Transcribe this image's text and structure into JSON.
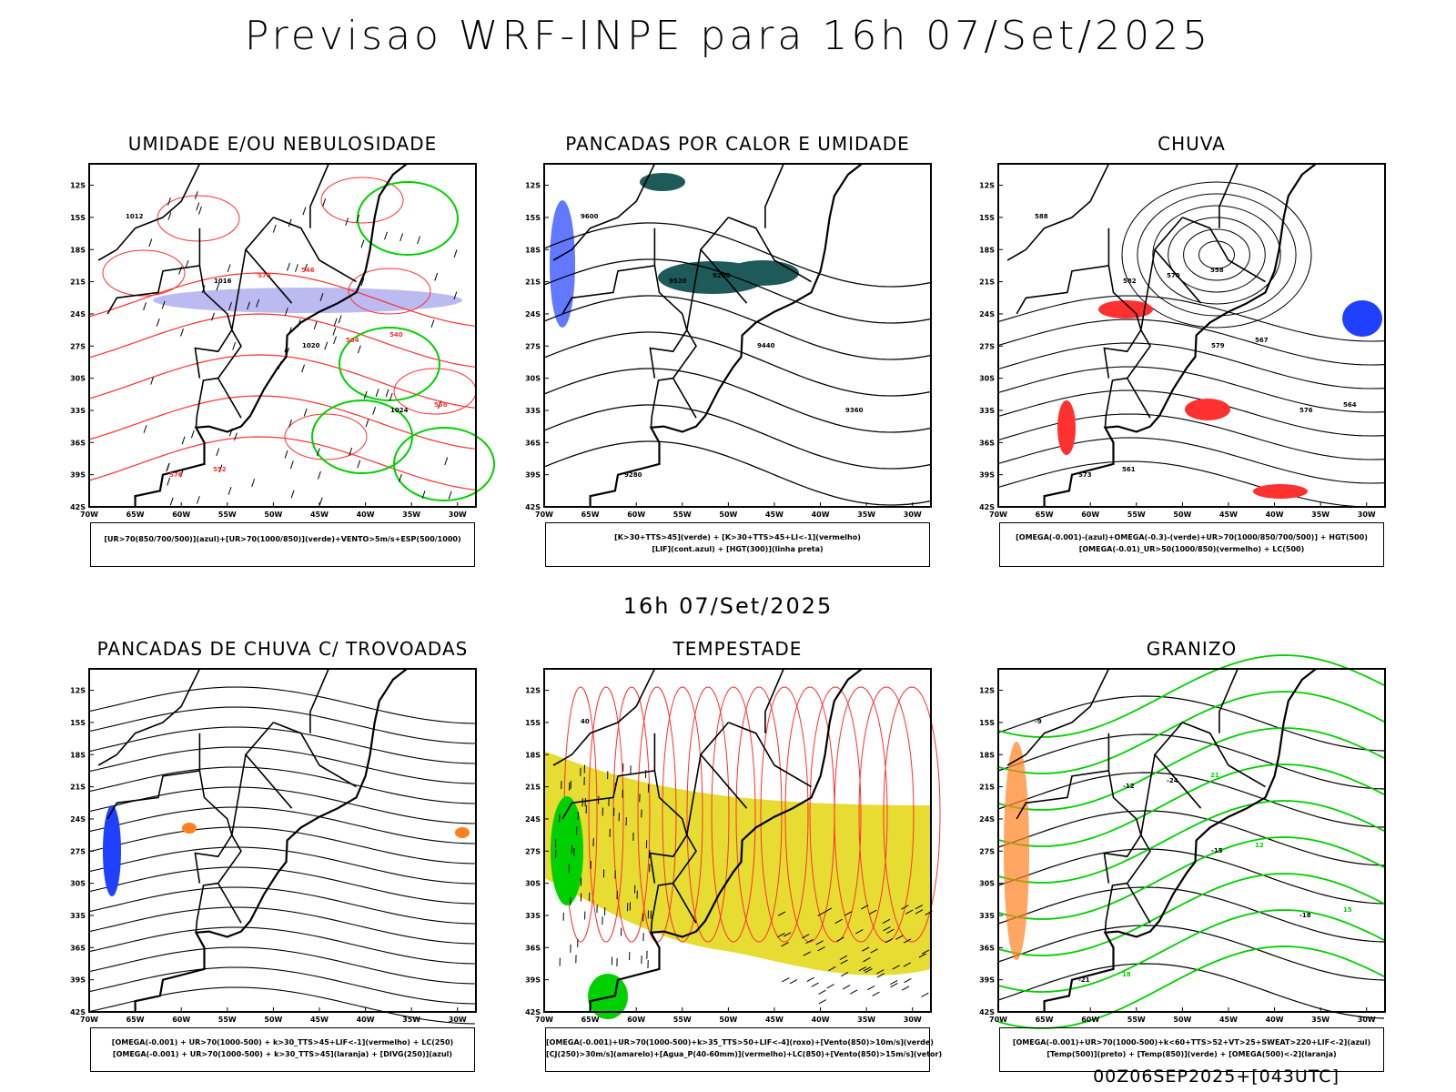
{
  "title": "Previsao WRF-INPE  para 16h 07/Set/2025",
  "mid_title": "16h 07/Set/2025",
  "footer": "00Z06SEP2025+[043UTC]",
  "colors": {
    "blue": "#2040ff",
    "green": "#00d000",
    "red": "#ff3030",
    "orange": "#ff8020",
    "yellow": "#e6dc32",
    "teal": "#1e5a5a",
    "lavender": "#b4b4f0"
  },
  "chart_data": [
    {
      "type": "map",
      "title": "UMIDADE E/OU NEBULOSIDADE",
      "legend": [
        "[UR>70(850/700/500)](azul)+[UR>70(1000/850)](verde)+VENTO>5m/s+ESP(500/1000)"
      ],
      "labels": [
        "1012",
        "1016",
        "1020",
        "1024",
        "576",
        "570",
        "564",
        "558",
        "552",
        "546",
        "540"
      ],
      "lat_ticks": [
        "12S",
        "15S",
        "18S",
        "21S",
        "24S",
        "27S",
        "30S",
        "33S",
        "36S",
        "39S",
        "42S"
      ],
      "lon_ticks": [
        "70W",
        "65W",
        "60W",
        "55W",
        "50W",
        "45W",
        "40W",
        "35W",
        "30W"
      ]
    },
    {
      "type": "map",
      "title": "PANCADAS POR CALOR E UMIDADE",
      "legend": [
        "[K>30+TTS>45](verde) + [K>30+TTS>45+LI<-1](vermelho)",
        "[LIF](cont.azul) + [HGT(300)](linha preta)"
      ],
      "labels": [
        "9600",
        "9520",
        "9440",
        "9360",
        "9280",
        "9200"
      ],
      "lat_ticks": [
        "12S",
        "15S",
        "18S",
        "21S",
        "24S",
        "27S",
        "30S",
        "33S",
        "36S",
        "39S",
        "42S"
      ],
      "lon_ticks": [
        "70W",
        "65W",
        "60W",
        "55W",
        "50W",
        "45W",
        "40W",
        "35W",
        "30W"
      ]
    },
    {
      "type": "map",
      "title": "CHUVA",
      "legend": [
        "[OMEGA(-0.001)-(azul)+OMEGA(-0.3)-(verde)+UR>70(1000/850/700/500)] + HGT(500)",
        "[OMEGA(-0.01)_UR>50(1000/850)(vermelho) + LC(500)"
      ],
      "labels": [
        "588",
        "582",
        "579",
        "576",
        "573",
        "570",
        "567",
        "564",
        "561",
        "558"
      ],
      "lat_ticks": [
        "12S",
        "15S",
        "18S",
        "21S",
        "24S",
        "27S",
        "30S",
        "33S",
        "36S",
        "39S",
        "42S"
      ],
      "lon_ticks": [
        "70W",
        "65W",
        "60W",
        "55W",
        "50W",
        "45W",
        "40W",
        "35W",
        "30W"
      ]
    },
    {
      "type": "map",
      "title": "PANCADAS DE CHUVA C/ TROVOADAS",
      "legend": [
        "[OMEGA(-0.001) + UR>70(1000-500) + k>30_TTS>45+LIF<-1](vermelho) + LC(250)",
        "[OMEGA(-0.001) + UR>70(1000-500) + k>30_TTS>45](laranja) + [DIVG(250)](azul)"
      ],
      "labels": [],
      "lat_ticks": [
        "12S",
        "15S",
        "18S",
        "21S",
        "24S",
        "27S",
        "30S",
        "33S",
        "36S",
        "39S",
        "42S"
      ],
      "lon_ticks": [
        "70W",
        "65W",
        "60W",
        "55W",
        "50W",
        "45W",
        "40W",
        "35W",
        "30W"
      ]
    },
    {
      "type": "map",
      "title": "TEMPESTADE",
      "legend": [
        "[OMEGA(-0.001)+UR>70(1000-500)+k>35_TTS>50+LIF<-4](roxo)+[Vento(850)>10m/s](verde)",
        "[CJ(250)>30m/s](amarelo)+[Agua_P(40-60mm)](vermelho)+LC(850)+[Vento(850)>15m/s](vetor)"
      ],
      "labels": [
        "40"
      ],
      "lat_ticks": [
        "12S",
        "15S",
        "18S",
        "21S",
        "24S",
        "27S",
        "30S",
        "33S",
        "36S",
        "39S",
        "42S"
      ],
      "lon_ticks": [
        "70W",
        "65W",
        "60W",
        "55W",
        "50W",
        "45W",
        "40W",
        "35W",
        "30W"
      ]
    },
    {
      "type": "map",
      "title": "GRANIZO",
      "legend": [
        "[OMEGA(-0.001)+UR>70(1000-500)+k<60+TTS>52+VT>25+SWEAT>220+LIF<-2](azul)",
        "[Temp(500)](preto) + [Temp(850)](verde) + [OMEGA(500)<-2](laranja)"
      ],
      "labels": [
        "-9",
        "-12",
        "-15",
        "-18",
        "-21",
        "-24",
        "12",
        "15",
        "18",
        "21"
      ],
      "lat_ticks": [
        "12S",
        "15S",
        "18S",
        "21S",
        "24S",
        "27S",
        "30S",
        "33S",
        "36S",
        "39S",
        "42S"
      ],
      "lon_ticks": [
        "70W",
        "65W",
        "60W",
        "55W",
        "50W",
        "45W",
        "40W",
        "35W",
        "30W"
      ]
    }
  ]
}
